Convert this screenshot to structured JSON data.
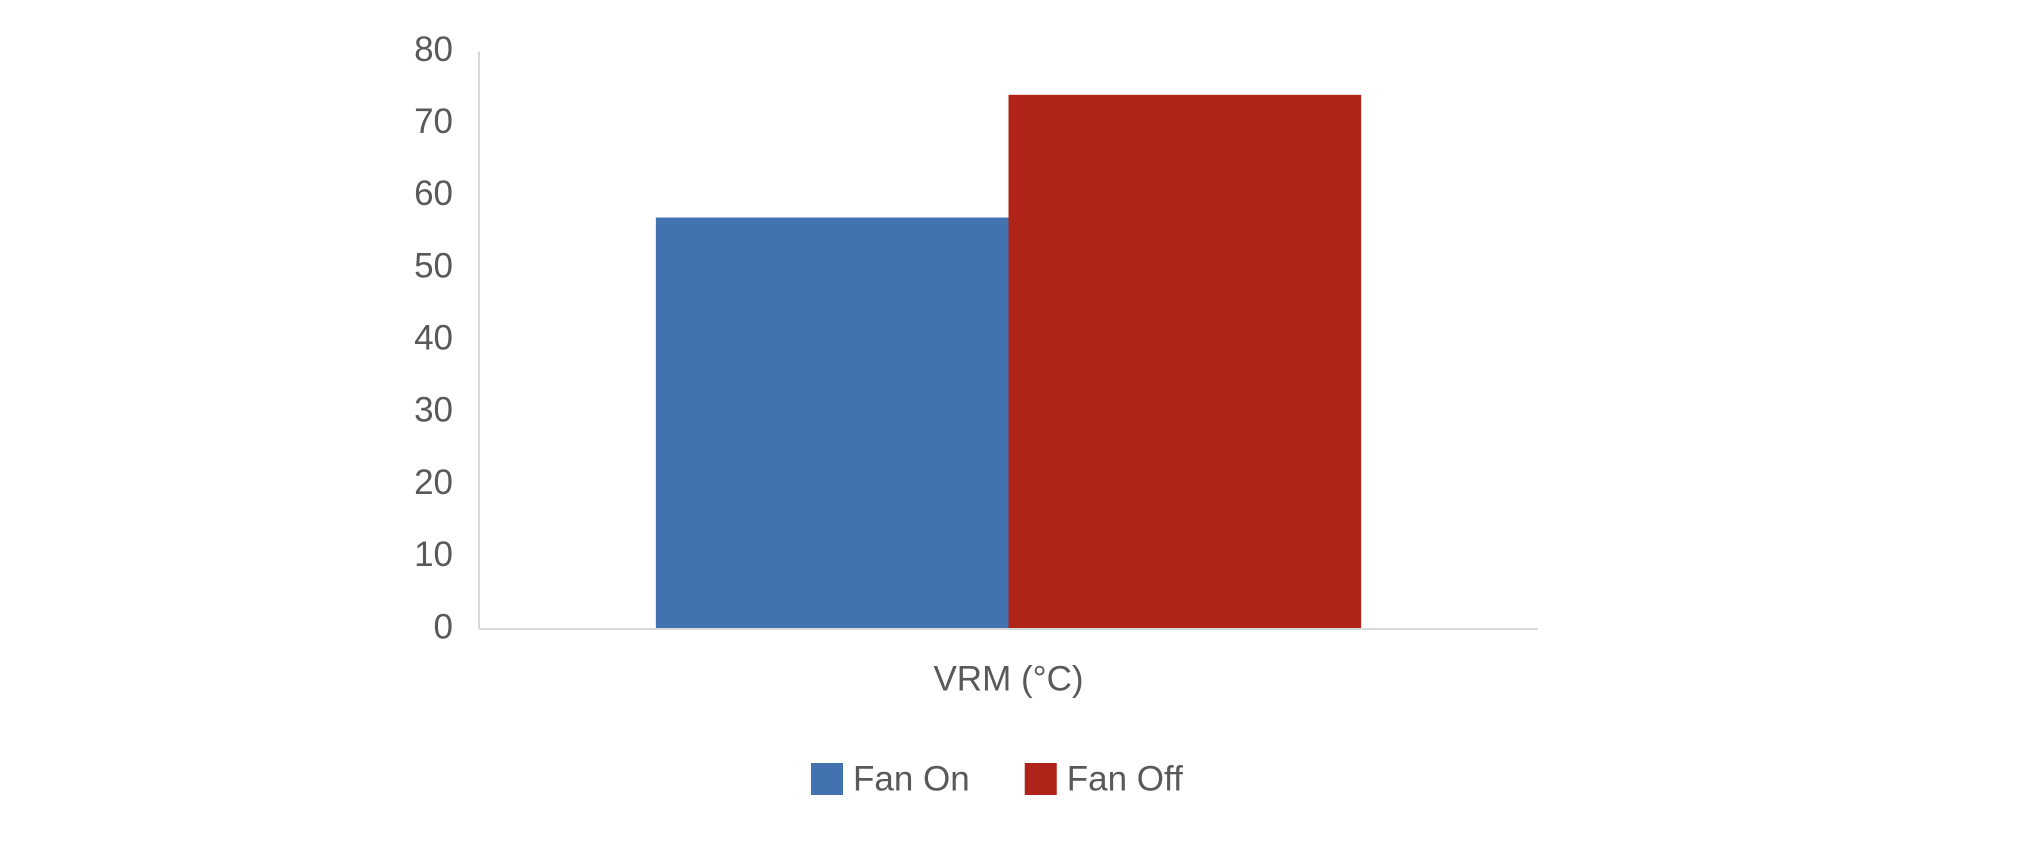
{
  "chart_data": {
    "type": "bar",
    "categories": [
      "VRM (°C)"
    ],
    "series": [
      {
        "name": "Fan On",
        "color": "#4372b0",
        "values": [
          57
        ]
      },
      {
        "name": "Fan Off",
        "color": "#b02318",
        "values": [
          74
        ]
      }
    ],
    "ylim": [
      0,
      80
    ],
    "yticks": [
      0,
      10,
      20,
      30,
      40,
      50,
      60,
      70,
      80
    ],
    "grid": false,
    "legend": "bottom"
  }
}
